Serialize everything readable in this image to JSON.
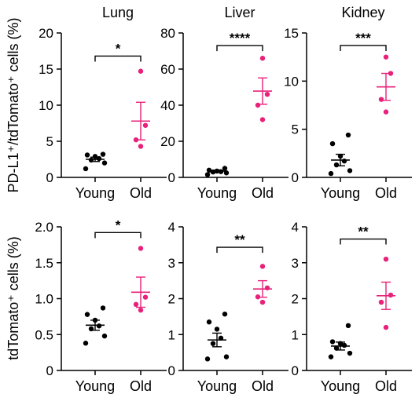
{
  "ylabels": {
    "row1": "PD-L1⁺/tdTomato⁺ cells (%)",
    "row2": "tdTomato⁺ cells (%)"
  },
  "colors": {
    "young": "#000000",
    "old": "#e8217a"
  },
  "chart_data": [
    {
      "type": "scatter",
      "title": "Lung",
      "row": 0,
      "col": 0,
      "ylim": [
        0,
        20
      ],
      "yticks": [
        0,
        5,
        10,
        15,
        20
      ],
      "ytick_labels": [
        "0",
        "5",
        "10",
        "15",
        "20"
      ],
      "categories": [
        "Young",
        "Old"
      ],
      "series": [
        {
          "values": [
            1.2,
            2.0,
            2.4,
            2.6,
            2.9,
            3.1,
            3.2
          ],
          "mean": 2.5,
          "sem": 0.3
        },
        {
          "values": [
            4.3,
            5.2,
            7.2,
            14.7
          ],
          "mean": 7.8,
          "sem": 2.6
        }
      ],
      "significance": "*",
      "sig_y": 16.8
    },
    {
      "type": "scatter",
      "title": "Liver",
      "row": 0,
      "col": 1,
      "ylim": [
        0,
        80
      ],
      "yticks": [
        0,
        20,
        40,
        60,
        80
      ],
      "ytick_labels": [
        "0",
        "20",
        "40",
        "60",
        "80"
      ],
      "categories": [
        "Young",
        "Old"
      ],
      "series": [
        {
          "values": [
            1.5,
            2.5,
            3.0,
            3.2,
            3.5,
            4.0,
            5.0
          ],
          "mean": 3.5,
          "sem": 0.5
        },
        {
          "values": [
            32,
            40,
            46,
            66
          ],
          "mean": 47.8,
          "sem": 7.3
        }
      ],
      "significance": "****",
      "sig_y": 73
    },
    {
      "type": "scatter",
      "title": "Kidney",
      "row": 0,
      "col": 2,
      "ylim": [
        0,
        15
      ],
      "yticks": [
        0,
        5,
        10,
        15
      ],
      "ytick_labels": [
        "0",
        "5",
        "10",
        "15"
      ],
      "categories": [
        "Young",
        "Old"
      ],
      "series": [
        {
          "values": [
            0.4,
            0.7,
            1.3,
            1.7,
            2.2,
            3.5,
            4.4
          ],
          "mean": 1.8,
          "sem": 0.6
        },
        {
          "values": [
            6.8,
            8.1,
            10.8,
            12.5
          ],
          "mean": 9.4,
          "sem": 1.4
        }
      ],
      "significance": "***",
      "sig_y": 13.7
    },
    {
      "type": "scatter",
      "title": "",
      "row": 1,
      "col": 0,
      "ylim": [
        0,
        2
      ],
      "yticks": [
        0,
        0.5,
        1.0,
        1.5,
        2.0
      ],
      "ytick_labels": [
        "0",
        "0.5",
        "1.0",
        "1.5",
        "2.0"
      ],
      "categories": [
        "Young",
        "Old"
      ],
      "series": [
        {
          "values": [
            0.38,
            0.48,
            0.58,
            0.62,
            0.7,
            0.78,
            0.87
          ],
          "mean": 0.63,
          "sem": 0.07
        },
        {
          "values": [
            0.84,
            0.92,
            1.02,
            1.7
          ],
          "mean": 1.09,
          "sem": 0.21
        }
      ],
      "significance": "*",
      "sig_y": 1.92
    },
    {
      "type": "scatter",
      "title": "",
      "row": 1,
      "col": 1,
      "ylim": [
        0,
        4
      ],
      "yticks": [
        0,
        1,
        2,
        3,
        4
      ],
      "ytick_labels": [
        "0",
        "1",
        "2",
        "3",
        "4"
      ],
      "categories": [
        "Young",
        "Old"
      ],
      "series": [
        {
          "values": [
            0.32,
            0.38,
            0.75,
            0.9,
            1.15,
            1.35,
            1.57
          ],
          "mean": 0.85,
          "sem": 0.19
        },
        {
          "values": [
            1.9,
            2.05,
            2.3,
            2.9
          ],
          "mean": 2.27,
          "sem": 0.23
        }
      ],
      "significance": "**",
      "sig_y": 3.43
    },
    {
      "type": "scatter",
      "title": "",
      "row": 1,
      "col": 2,
      "ylim": [
        0,
        4
      ],
      "yticks": [
        0,
        1,
        2,
        3,
        4
      ],
      "ytick_labels": [
        "0",
        "1",
        "2",
        "3",
        "4"
      ],
      "categories": [
        "Young",
        "Old"
      ],
      "series": [
        {
          "values": [
            0.38,
            0.48,
            0.62,
            0.7,
            0.75,
            0.8,
            1.25
          ],
          "mean": 0.68,
          "sem": 0.11
        },
        {
          "values": [
            1.2,
            1.9,
            2.1,
            3.1
          ],
          "mean": 2.08,
          "sem": 0.38
        }
      ],
      "significance": "**",
      "sig_y": 3.66
    }
  ]
}
